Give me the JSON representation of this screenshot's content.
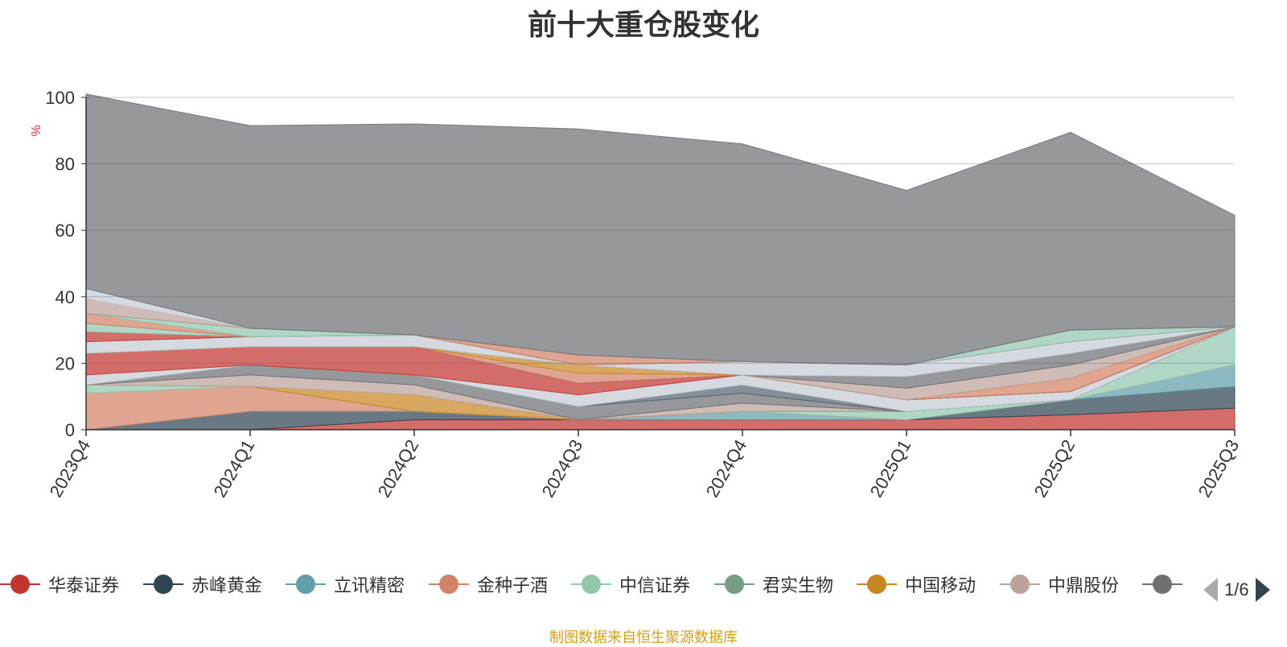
{
  "title": "前十大重仓股变化",
  "source_note": "制图数据来自恒生聚源数据库",
  "pager": {
    "text": "1/6"
  },
  "legend": [
    {
      "name": "华泰证券",
      "color": "#c23531"
    },
    {
      "name": "赤峰黄金",
      "color": "#2f4554"
    },
    {
      "name": "立讯精密",
      "color": "#61a0a8"
    },
    {
      "name": "金种子酒",
      "color": "#d48265"
    },
    {
      "name": "中信证券",
      "color": "#91c7ae"
    },
    {
      "name": "君实生物",
      "color": "#749f83"
    },
    {
      "name": "中国移动",
      "color": "#ca8622"
    },
    {
      "name": "中鼎股份",
      "color": "#bda29a"
    },
    {
      "name": "",
      "color": "#6e7074"
    }
  ],
  "chart_data": {
    "type": "area",
    "stacked": true,
    "title": "前十大重仓股变化",
    "ylabel": "%",
    "ylim": [
      0,
      100
    ],
    "yticks": [
      0,
      20,
      40,
      60,
      80,
      100
    ],
    "categories": [
      "2023Q4",
      "2024Q1",
      "2024Q2",
      "2024Q3",
      "2024Q4",
      "2025Q1",
      "2025Q2",
      "2025Q3"
    ],
    "grid": true,
    "legend_position": "bottom",
    "series": [
      {
        "name": "华泰证券",
        "color": "#c23531",
        "values": [
          0,
          0,
          3,
          3,
          3,
          3,
          4.5,
          6.5
        ]
      },
      {
        "name": "赤峰黄金",
        "color": "#2f4554",
        "values": [
          0,
          5.5,
          2.5,
          0,
          0,
          0,
          4.5,
          6.5
        ]
      },
      {
        "name": "立讯精密",
        "color": "#61a0a8",
        "values": [
          0,
          0,
          0,
          0,
          2.5,
          0,
          0,
          6.5
        ]
      },
      {
        "name": "金种子酒",
        "color": "#d48265",
        "values": [
          11,
          7.5,
          0,
          0,
          0,
          0,
          0,
          0
        ]
      },
      {
        "name": "中信证券",
        "color": "#91c7ae",
        "values": [
          2.5,
          0,
          0,
          0,
          0,
          2.5,
          0,
          11.5
        ]
      },
      {
        "name": "君实生物",
        "color": "#749f83",
        "values": [
          0,
          0,
          0,
          0,
          0,
          0,
          0,
          0
        ]
      },
      {
        "name": "中国移动",
        "color": "#ca8622",
        "values": [
          0,
          0,
          5,
          0,
          0,
          0,
          0,
          0
        ]
      },
      {
        "name": "中鼎股份",
        "color": "#bda29a",
        "values": [
          0,
          3.5,
          3,
          0,
          2.5,
          0,
          0,
          0
        ]
      },
      {
        "series_index": 9,
        "color": "#6e7074",
        "values": [
          0,
          3,
          3,
          4,
          3,
          0,
          0,
          0
        ]
      },
      {
        "series_index": 10,
        "color": "#546570",
        "values": [
          0,
          0,
          0,
          0,
          2.5,
          0,
          0,
          0
        ]
      }
    ],
    "other_layers": [
      {
        "color": "#c4ccd3",
        "values": [
          3,
          0,
          0,
          3.5,
          3,
          3.5,
          2.5,
          0
        ]
      },
      {
        "color": "#c23531",
        "values": [
          6.5,
          5.5,
          8.5,
          3.5,
          0,
          0,
          0,
          0
        ]
      },
      {
        "color": "#2f4554",
        "values": [
          0,
          0,
          0,
          0,
          0,
          0,
          0,
          0
        ]
      },
      {
        "color": "#d48265",
        "values": [
          0,
          0,
          0,
          3,
          0,
          0,
          4,
          0
        ]
      },
      {
        "color": "#ca8622",
        "values": [
          0,
          0,
          0,
          2.5,
          0,
          0,
          0,
          0
        ]
      },
      {
        "color": "#bda29a",
        "values": [
          0,
          0,
          0,
          0,
          0,
          3.5,
          4,
          0
        ]
      },
      {
        "color": "#6e7074",
        "values": [
          0,
          0,
          0,
          0,
          0,
          3.5,
          3.5,
          0
        ]
      },
      {
        "color": "#c4ccd3",
        "values": [
          3.5,
          3,
          3.5,
          0,
          4,
          3.5,
          3.5,
          0
        ]
      },
      {
        "color": "#c23531",
        "values": [
          3,
          0,
          0,
          0,
          0,
          0,
          0,
          0
        ]
      },
      {
        "color": "#91c7ae",
        "values": [
          2.5,
          0,
          0,
          0,
          0,
          0,
          3.5,
          0
        ]
      },
      {
        "color": "#749f83",
        "values": [
          0,
          0,
          0,
          0,
          0,
          0,
          0,
          0
        ]
      },
      {
        "color": "#d48265",
        "values": [
          3,
          0,
          0,
          3,
          0,
          0,
          0,
          0
        ]
      },
      {
        "color": "#91c7ae",
        "values": [
          0,
          2.5,
          0,
          0,
          0,
          0,
          0,
          0
        ]
      },
      {
        "color": "#6e7074",
        "values": [
          0,
          0,
          0,
          0,
          0,
          0,
          0,
          0
        ]
      },
      {
        "color": "#bda29a",
        "values": [
          4.5,
          0,
          0,
          0,
          0,
          0,
          0,
          0
        ]
      },
      {
        "color": "#c4ccd3",
        "values": [
          3,
          0,
          0,
          0,
          0,
          0,
          0,
          0
        ]
      },
      {
        "color": "#6e7074",
        "values": [
          58.5,
          61,
          63.5,
          68,
          65.5,
          52.5,
          59.5,
          33.5
        ]
      }
    ]
  }
}
